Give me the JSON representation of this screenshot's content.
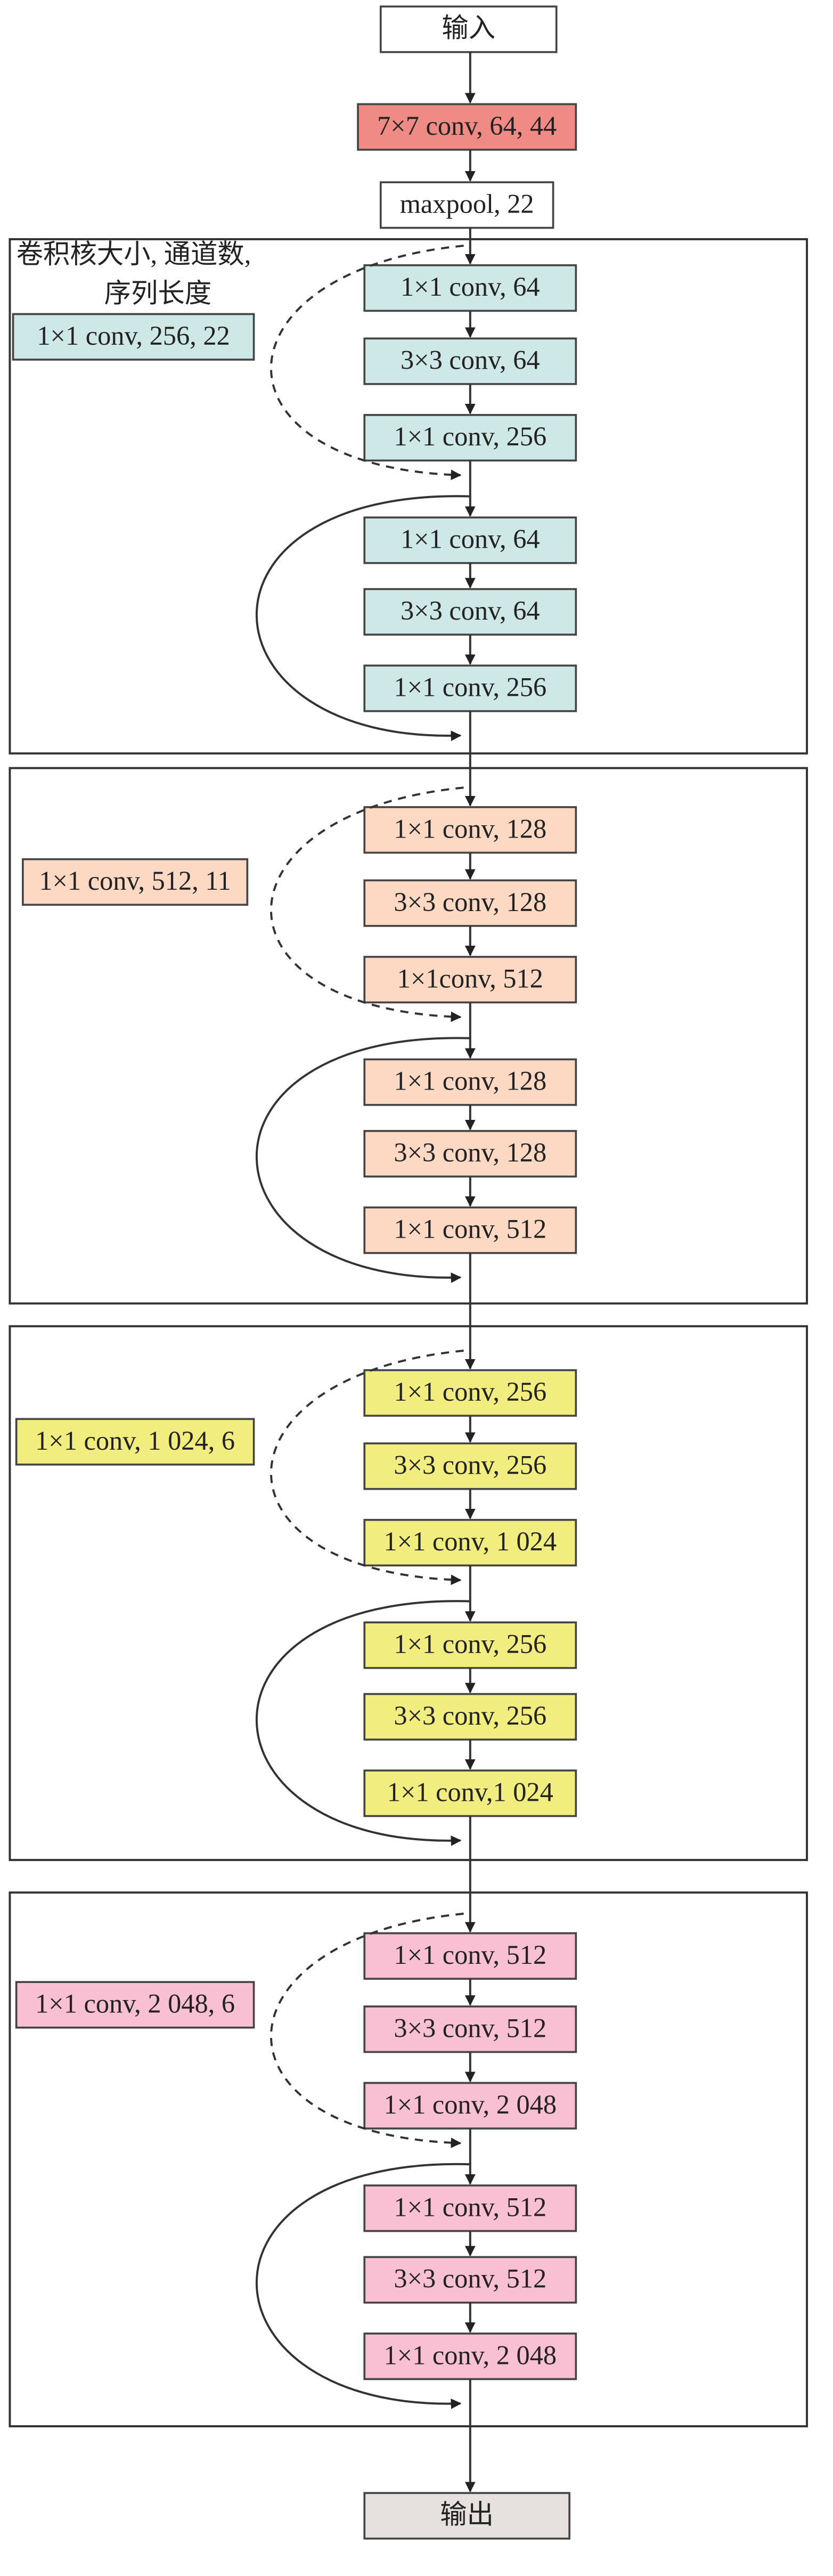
{
  "input": "输入",
  "stem": "7×7 conv, 64, 44",
  "pool": "maxpool, 22",
  "legend": [
    "卷积核大小, 通道数,",
    "序列长度"
  ],
  "stages": [
    {
      "shortcut": "1×1 conv, 256, 22",
      "blocks": [
        "1×1 conv, 64",
        "3×3 conv, 64",
        "1×1 conv, 256",
        "1×1 conv, 64",
        "3×3 conv, 64",
        "1×1 conv, 256"
      ]
    },
    {
      "shortcut": "1×1 conv, 512, 11",
      "blocks": [
        "1×1 conv, 128",
        "3×3 conv, 128",
        "1×1conv, 512",
        "1×1 conv, 128",
        "3×3 conv, 128",
        "1×1 conv, 512"
      ]
    },
    {
      "shortcut": "1×1 conv, 1 024, 6",
      "blocks": [
        "1×1 conv, 256",
        "3×3 conv, 256",
        "1×1 conv, 1 024",
        "1×1 conv, 256",
        "3×3 conv, 256",
        "1×1 conv,1 024"
      ]
    },
    {
      "shortcut": "1×1 conv, 2 048, 6",
      "blocks": [
        "1×1 conv, 512",
        "3×3 conv, 512",
        "1×1 conv, 2 048",
        "1×1 conv, 512",
        "3×3 conv, 512",
        "1×1 conv, 2 048"
      ]
    }
  ],
  "output": "输出"
}
